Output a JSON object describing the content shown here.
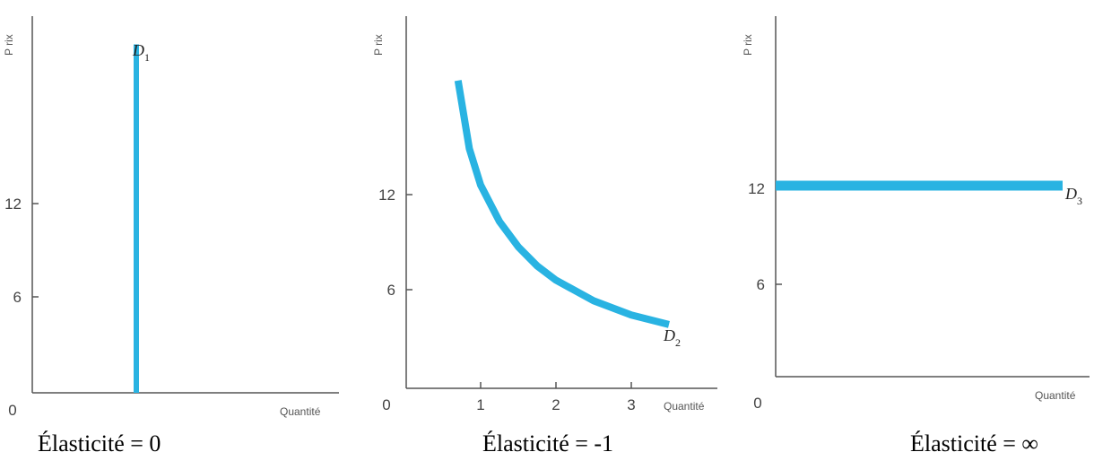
{
  "chart_data": [
    {
      "type": "line",
      "ylabel": "P rix",
      "xlabel": "Quantité",
      "origin_label": "0",
      "ylim": [
        0,
        20
      ],
      "yticks": [
        6,
        12
      ],
      "xticks": [],
      "series": [
        {
          "name": "D1",
          "x": [
            1,
            1
          ],
          "y": [
            0,
            18.5
          ]
        }
      ],
      "caption": "Élasticité = 0",
      "color": "#29b3e2"
    },
    {
      "type": "line",
      "ylabel": "P rix",
      "xlabel": "Quantité",
      "origin_label": "0",
      "xlim": [
        0,
        4
      ],
      "ylim": [
        0,
        20
      ],
      "yticks": [
        6,
        12
      ],
      "xticks": [
        1,
        2,
        3
      ],
      "series": [
        {
          "name": "D2",
          "x": [
            0.7,
            0.85,
            1.0,
            1.25,
            1.5,
            1.75,
            2.0,
            2.5,
            3.0,
            3.5
          ],
          "y": [
            19.2,
            14.9,
            12.6,
            10.3,
            8.7,
            7.5,
            6.6,
            5.3,
            4.4,
            3.8
          ]
        }
      ],
      "caption": "Élasticité = -1",
      "color": "#29b3e2"
    },
    {
      "type": "line",
      "ylabel": "P rix",
      "xlabel": "Quantité",
      "origin_label": "0",
      "ylim": [
        0,
        24
      ],
      "yticks": [
        6,
        12
      ],
      "xticks": [],
      "series": [
        {
          "name": "D3",
          "x": [
            0,
            1
          ],
          "y": [
            12,
            12
          ]
        }
      ],
      "caption": "Élasticité = ∞",
      "color": "#29b3e2"
    }
  ]
}
